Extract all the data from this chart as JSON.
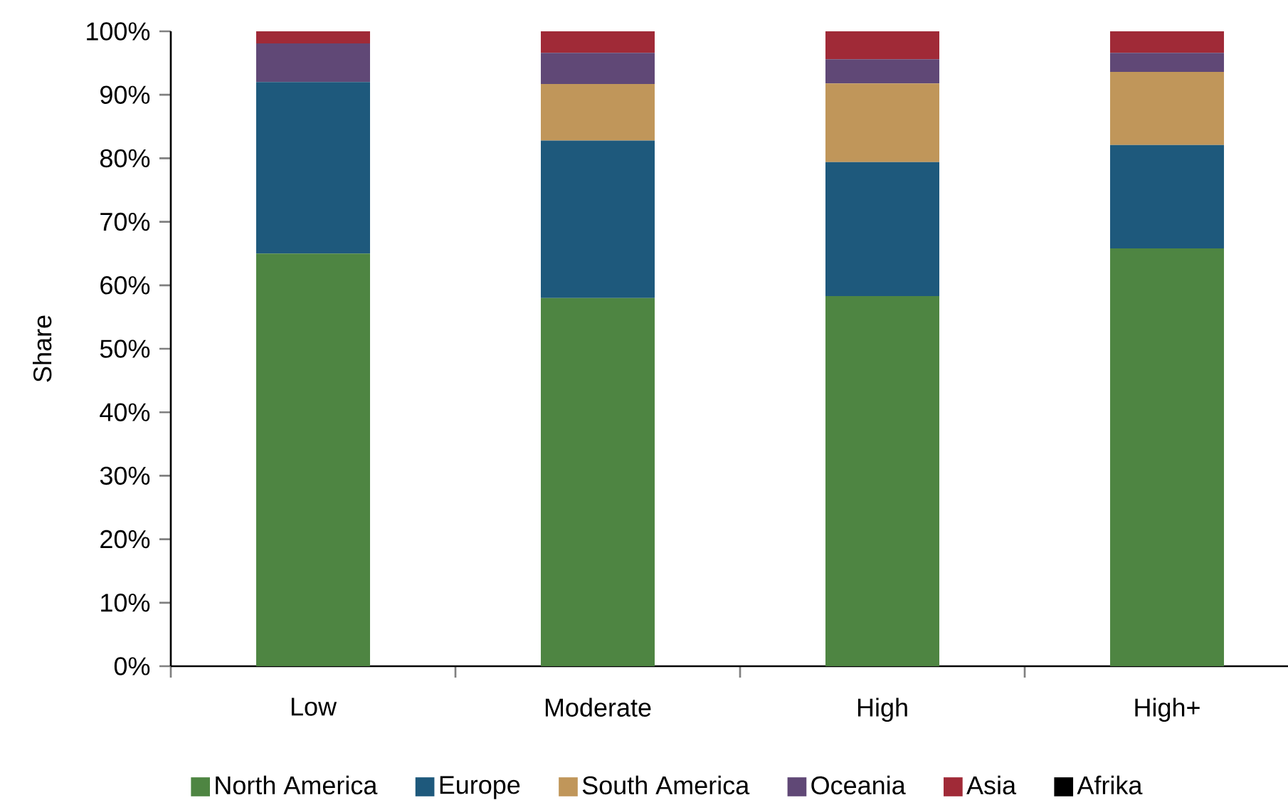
{
  "chart_data": {
    "type": "bar",
    "stacked": true,
    "ylabel": "Share",
    "categories": [
      "Low",
      "Moderate",
      "High",
      "High+"
    ],
    "series": [
      {
        "name": "North America",
        "color": "#4e8542",
        "values": [
          65,
          58,
          58.3,
          65.8
        ]
      },
      {
        "name": "Europe",
        "color": "#1e597c",
        "values": [
          27,
          24.8,
          21.1,
          16.3
        ]
      },
      {
        "name": "South America",
        "color": "#c0965a",
        "values": [
          0,
          8.9,
          12.4,
          11.5
        ]
      },
      {
        "name": "Oceania",
        "color": "#604876",
        "values": [
          6.1,
          4.9,
          3.8,
          3.0
        ]
      },
      {
        "name": "Asia",
        "color": "#a02a37",
        "values": [
          1.9,
          3.4,
          4.4,
          3.4
        ]
      },
      {
        "name": "Afrika",
        "color": "#000000",
        "values": [
          0,
          0,
          0,
          0
        ]
      }
    ],
    "ylim": [
      0,
      100
    ],
    "yticks": [
      {
        "value": 0,
        "label": "0%"
      },
      {
        "value": 10,
        "label": "10%"
      },
      {
        "value": 20,
        "label": "20%"
      },
      {
        "value": 30,
        "label": "30%"
      },
      {
        "value": 40,
        "label": "40%"
      },
      {
        "value": 50,
        "label": "50%"
      },
      {
        "value": 60,
        "label": "60%"
      },
      {
        "value": 70,
        "label": "70%"
      },
      {
        "value": 80,
        "label": "80%"
      },
      {
        "value": 90,
        "label": "90%"
      },
      {
        "value": 100,
        "label": "100%"
      }
    ],
    "grid": false,
    "legend": "bottom"
  }
}
